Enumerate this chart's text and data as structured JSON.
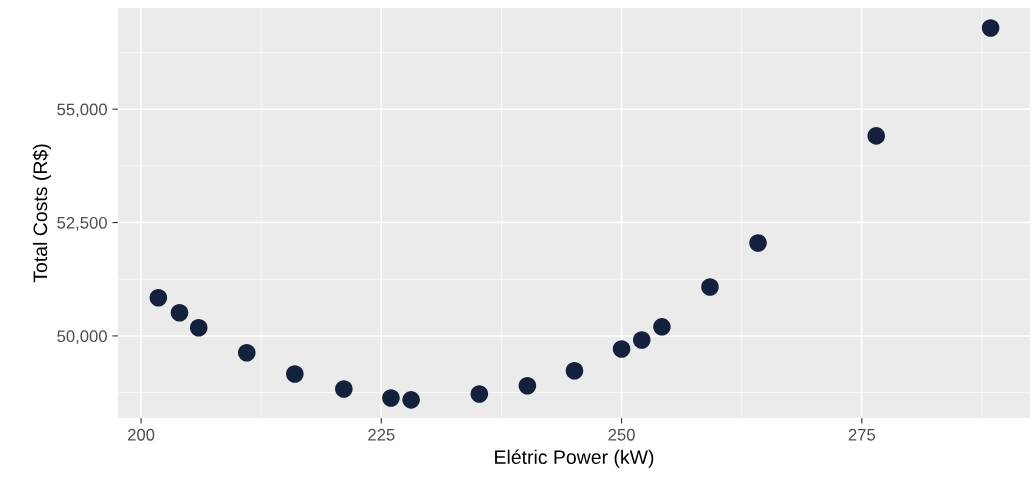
{
  "chart_data": {
    "type": "scatter",
    "xlabel": "Elétric Power (kW)",
    "ylabel": "Total Costs (R$)",
    "x": [
      201.8,
      204,
      206,
      211,
      216,
      221.1,
      226,
      228.1,
      235.2,
      240.2,
      245.1,
      250,
      252.1,
      254.2,
      259.2,
      264.2,
      276.5,
      288.4
    ],
    "series": [
      {
        "color": "#14213d",
        "values": [
          50840,
          50510,
          50180,
          49630,
          49160,
          48830,
          48630,
          48590,
          48720,
          48900,
          49230,
          49710,
          49910,
          50200,
          51080,
          52050,
          54410,
          56790
        ]
      }
    ],
    "xlim": [
      197.6,
      292.5
    ],
    "ylim": [
      48190,
      57230
    ],
    "xticks": [
      200,
      225,
      250,
      275
    ],
    "yticks": [
      {
        "value": 50000,
        "label": "50,000"
      },
      {
        "value": 52500,
        "label": "52,500"
      },
      {
        "value": 55000,
        "label": "55,000"
      }
    ],
    "grid": true,
    "marker": "circle"
  }
}
